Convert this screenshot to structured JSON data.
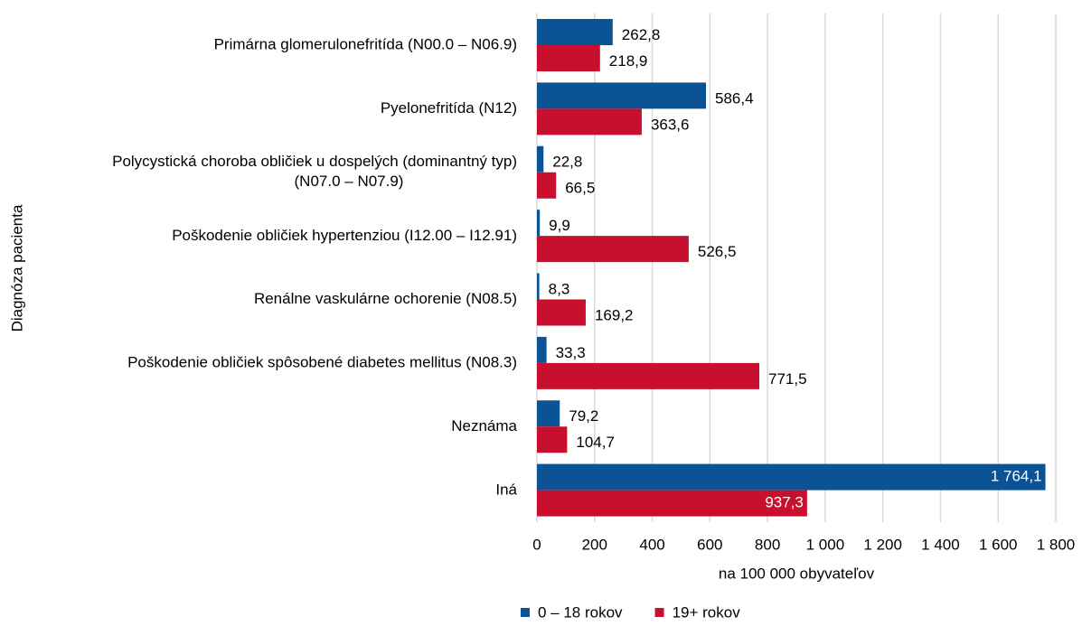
{
  "chart_data": {
    "type": "hbar",
    "y_label": "Diagnóza pacienta",
    "x_label": "na 100 000 obyvateľov",
    "categories": [
      "Primárna glomerulonefritída (N00.0 – N06.9)",
      "Pyelonefritída (N12)",
      "Polycystická choroba obličiek u dospelých (dominantný typ)\n(N07.0 – N07.9)",
      "Poškodenie obličiek hypertenziou (I12.00 – I12.91)",
      "Renálne vaskulárne ochorenie (N08.5)",
      "Poškodenie obličiek spôsobené diabetes mellitus (N08.3)",
      "Neznáma",
      "Iná"
    ],
    "series": [
      {
        "name": "0 – 18 rokov",
        "color": "#0b5394",
        "values": [
          262.8,
          586.4,
          22.8,
          9.9,
          8.3,
          33.3,
          79.2,
          1764.1
        ],
        "value_labels": [
          "262,8",
          "586,4",
          "22,8",
          "9,9",
          "8,3",
          "33,3",
          "79,2",
          "1 764,1"
        ]
      },
      {
        "name": "19+ rokov",
        "color": "#c8102e",
        "values": [
          218.9,
          363.6,
          66.5,
          526.5,
          169.2,
          771.5,
          104.7,
          937.3
        ],
        "value_labels": [
          "218,9",
          "363,6",
          "66,5",
          "526,5",
          "169,2",
          "771,5",
          "104,7",
          "937,3"
        ]
      }
    ],
    "xlim": [
      0,
      1800
    ],
    "xticks": [
      0,
      200,
      400,
      600,
      800,
      {
        "value": 1000,
        "label": "1 000"
      },
      {
        "value": 1200,
        "label": "1 200"
      },
      {
        "value": 1400,
        "label": "1 400"
      },
      {
        "value": 1600,
        "label": "1 600"
      },
      {
        "value": 1800,
        "label": "1 800"
      }
    ],
    "grid": true,
    "legend": "bottom"
  }
}
